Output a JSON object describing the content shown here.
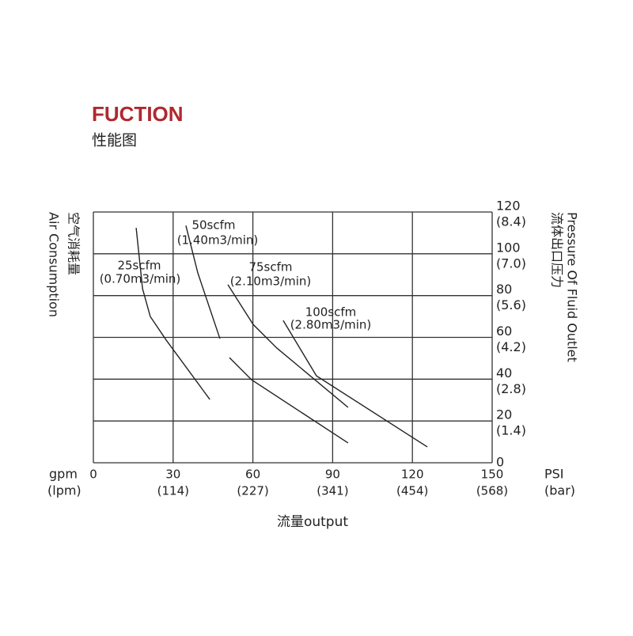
{
  "chart_data": {
    "type": "line",
    "title": "FUCTION",
    "subtitle": "性能图",
    "x_label": "流量output",
    "x_unit": "gpm",
    "x_unit_alt": "(lpm)",
    "y_unit": "PSI",
    "y_unit_alt": "(bar)",
    "y_label_left": "空气消耗量",
    "y_label_left_en": "Air Consumption",
    "y_label_right": "流体出口压力",
    "y_label_right_en": "Pressure Of Fluid Outlet",
    "xlim": [
      0,
      150
    ],
    "xticks": [
      0,
      30,
      60,
      90,
      120,
      150
    ],
    "xticks_alt": [
      null,
      "(114)",
      "(227)",
      "(341)",
      "(454)",
      "(568)"
    ],
    "ylim": [
      0,
      120
    ],
    "yticks": [
      0,
      20,
      40,
      60,
      80,
      100,
      120
    ],
    "yticks_alt": [
      null,
      "(1.4)",
      "(2.8)",
      "(4.2)",
      "(5.6)",
      "(7.0)",
      "(8.4)"
    ],
    "grid": true,
    "color": "#222222",
    "series": [
      {
        "name": "25scfm",
        "name_metric": "(0.70m3/min)",
        "x": [
          16.1,
          18.5,
          21.4,
          27.4,
          43.8
        ],
        "values": [
          112.4,
          83.3,
          70,
          58.7,
          30.3
        ]
      },
      {
        "name": "50scfm",
        "name_metric": "(1.40m3/min)",
        "x": [
          34.8,
          39.3,
          47.6
        ],
        "values": [
          113.5,
          90.8,
          59.4
        ]
      },
      {
        "name": "75scfm",
        "name_metric": "(2.10m3/min)",
        "x": [
          50.6,
          60.1,
          69,
          95.8
        ],
        "values": [
          85.2,
          66.2,
          54.9,
          26.5
        ]
      },
      {
        "name": "100scfm",
        "name_metric": "(2.80m3/min)",
        "x": [
          71.4,
          83.9,
          125.6
        ],
        "values": [
          68.1,
          41.6,
          7.6
        ]
      },
      {
        "x": [
          51.2,
          59.5,
          95.8
        ],
        "values": [
          50.3,
          39.7,
          9.5
        ]
      }
    ]
  }
}
